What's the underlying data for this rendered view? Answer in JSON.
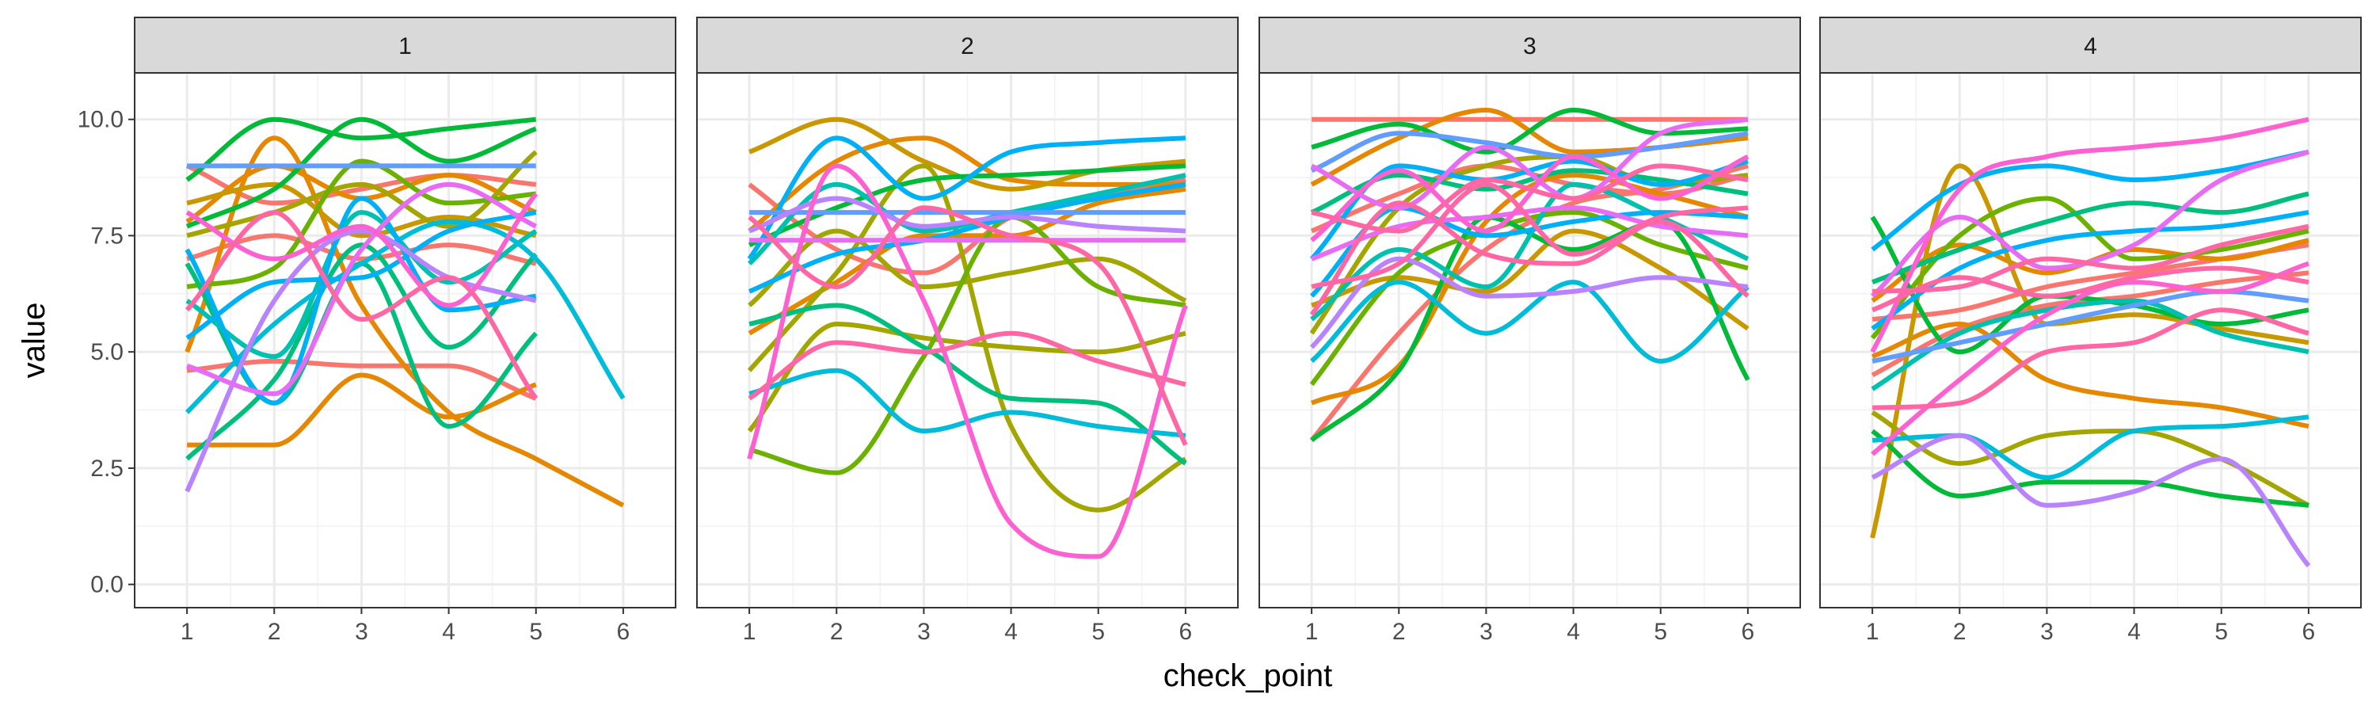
{
  "chart_data": {
    "type": "line",
    "facet_variable_values": [
      "1",
      "2",
      "3",
      "4"
    ],
    "xlabel": "check_point",
    "ylabel": "value",
    "title": "",
    "xlim": [
      0.4,
      6.6
    ],
    "ylim": [
      -0.5,
      11.0
    ],
    "x_ticks": [
      "1",
      "2",
      "3",
      "4",
      "5",
      "6"
    ],
    "y_ticks": [
      "0.0",
      "2.5",
      "5.0",
      "7.5",
      "10.0"
    ],
    "grid": true,
    "theme": "bw",
    "line_style": "smoothed",
    "legend": "none",
    "panels": [
      {
        "facet": "1",
        "x": [
          1,
          2,
          3,
          4,
          5,
          6
        ],
        "series": [
          {
            "color": "#F8766D",
            "values": [
              9.0,
              8.2,
              8.5,
              8.8,
              8.6,
              null
            ]
          },
          {
            "color": "#F8766D",
            "values": [
              4.6,
              4.8,
              4.7,
              4.7,
              4.0,
              null
            ]
          },
          {
            "color": "#F8766D",
            "values": [
              7.0,
              7.5,
              7.0,
              7.3,
              6.9,
              null
            ]
          },
          {
            "color": "#E58700",
            "values": [
              5.0,
              9.6,
              6.0,
              3.7,
              2.7,
              1.7
            ]
          },
          {
            "color": "#E58700",
            "values": [
              3.0,
              3.0,
              4.5,
              3.6,
              4.3,
              null
            ]
          },
          {
            "color": "#E58700",
            "values": [
              7.8,
              9.0,
              8.3,
              8.8,
              8.0,
              null
            ]
          },
          {
            "color": "#C99800",
            "values": [
              8.2,
              8.6,
              7.5,
              7.9,
              7.5,
              null
            ]
          },
          {
            "color": "#A3A500",
            "values": [
              7.5,
              8.0,
              8.6,
              7.7,
              9.3,
              null
            ]
          },
          {
            "color": "#6BB100",
            "values": [
              6.4,
              6.8,
              9.1,
              8.2,
              8.4,
              null
            ]
          },
          {
            "color": "#00BA38",
            "values": [
              8.7,
              10.0,
              9.6,
              9.8,
              10.0,
              null
            ]
          },
          {
            "color": "#00BA38",
            "values": [
              7.7,
              8.5,
              10.0,
              9.1,
              9.8,
              null
            ]
          },
          {
            "color": "#00BF7D",
            "values": [
              6.9,
              3.9,
              6.9,
              3.4,
              5.4,
              null
            ]
          },
          {
            "color": "#00BF7D",
            "values": [
              2.7,
              4.4,
              7.3,
              5.1,
              7.1,
              null
            ]
          },
          {
            "color": "#00C0AF",
            "values": [
              6.1,
              4.9,
              8.0,
              6.5,
              7.6,
              null
            ]
          },
          {
            "color": "#00BCD8",
            "values": [
              3.7,
              5.6,
              6.9,
              7.8,
              7.0,
              4.0
            ]
          },
          {
            "color": "#00B0F6",
            "values": [
              7.2,
              3.9,
              8.3,
              5.9,
              6.2,
              null
            ]
          },
          {
            "color": "#00B0F6",
            "values": [
              5.3,
              6.5,
              6.6,
              7.6,
              8.0,
              null
            ]
          },
          {
            "color": "#619CFF",
            "values": [
              9.0,
              9.0,
              9.0,
              9.0,
              9.0,
              null
            ]
          },
          {
            "color": "#B983FF",
            "values": [
              2.0,
              6.1,
              7.6,
              6.6,
              6.1,
              null
            ]
          },
          {
            "color": "#E76BF3",
            "values": [
              4.7,
              4.1,
              7.2,
              8.6,
              7.7,
              null
            ]
          },
          {
            "color": "#FD61D1",
            "values": [
              8.0,
              7.0,
              7.7,
              6.0,
              8.4,
              null
            ]
          },
          {
            "color": "#FF67A4",
            "values": [
              5.9,
              8.0,
              5.7,
              6.6,
              4.0,
              null
            ]
          }
        ]
      },
      {
        "facet": "2",
        "x": [
          1,
          2,
          3,
          4,
          5,
          6
        ],
        "series": [
          {
            "color": "#F8766D",
            "values": [
              8.6,
              7.2,
              6.7,
              7.9,
              8.3,
              8.7
            ]
          },
          {
            "color": "#E58700",
            "values": [
              7.6,
              9.1,
              9.6,
              8.7,
              8.6,
              8.6
            ]
          },
          {
            "color": "#E58700",
            "values": [
              5.4,
              6.5,
              7.5,
              7.5,
              8.2,
              8.5
            ]
          },
          {
            "color": "#C99800",
            "values": [
              9.3,
              10.0,
              9.1,
              8.5,
              8.9,
              9.1
            ]
          },
          {
            "color": "#A3A500",
            "values": [
              6.0,
              7.6,
              6.4,
              6.7,
              7.0,
              6.1
            ]
          },
          {
            "color": "#A3A500",
            "values": [
              4.6,
              6.7,
              9.0,
              3.4,
              1.6,
              2.7
            ]
          },
          {
            "color": "#A3A500",
            "values": [
              3.3,
              5.6,
              5.3,
              5.1,
              5.0,
              5.4
            ]
          },
          {
            "color": "#6BB100",
            "values": [
              2.9,
              2.4,
              4.9,
              7.9,
              6.4,
              6.0
            ]
          },
          {
            "color": "#00BA38",
            "values": [
              7.3,
              8.1,
              8.7,
              8.8,
              8.9,
              9.0
            ]
          },
          {
            "color": "#00BF7D",
            "values": [
              5.6,
              6.0,
              5.1,
              4.0,
              3.9,
              2.6
            ]
          },
          {
            "color": "#00C0AF",
            "values": [
              6.9,
              8.6,
              7.6,
              8.0,
              8.4,
              8.8
            ]
          },
          {
            "color": "#00BCD8",
            "values": [
              4.1,
              4.6,
              3.3,
              3.7,
              3.4,
              3.2
            ]
          },
          {
            "color": "#00B0F6",
            "values": [
              7.0,
              9.6,
              8.3,
              9.3,
              9.5,
              9.6
            ]
          },
          {
            "color": "#00B0F6",
            "values": [
              6.3,
              7.1,
              7.4,
              7.9,
              8.3,
              8.6
            ]
          },
          {
            "color": "#619CFF",
            "values": [
              8.0,
              8.0,
              8.0,
              8.0,
              8.0,
              8.0
            ]
          },
          {
            "color": "#B983FF",
            "values": [
              7.6,
              8.3,
              7.7,
              7.9,
              7.7,
              7.6
            ]
          },
          {
            "color": "#E76BF3",
            "values": [
              7.4,
              7.4,
              7.4,
              7.4,
              7.4,
              7.4
            ]
          },
          {
            "color": "#FD61D1",
            "values": [
              2.7,
              9.0,
              6.1,
              1.3,
              0.6,
              6.0
            ]
          },
          {
            "color": "#FF67A4",
            "values": [
              4.0,
              5.2,
              5.0,
              5.4,
              4.8,
              4.3
            ]
          },
          {
            "color": "#FF67A4",
            "values": [
              7.9,
              6.4,
              8.1,
              7.5,
              6.9,
              3.0
            ]
          }
        ]
      },
      {
        "facet": "3",
        "x": [
          1,
          2,
          3,
          4,
          5,
          6
        ],
        "series": [
          {
            "color": "#F8766D",
            "values": [
              10.0,
              10.0,
              10.0,
              10.0,
              10.0,
              10.0
            ]
          },
          {
            "color": "#F8766D",
            "values": [
              3.1,
              5.4,
              7.2,
              8.2,
              8.5,
              9.0
            ]
          },
          {
            "color": "#F8766D",
            "values": [
              7.6,
              8.4,
              9.0,
              8.6,
              8.4,
              8.8
            ]
          },
          {
            "color": "#E58700",
            "values": [
              3.9,
              4.7,
              7.8,
              8.8,
              8.4,
              7.9
            ]
          },
          {
            "color": "#E58700",
            "values": [
              8.6,
              9.6,
              10.2,
              9.3,
              9.4,
              9.6
            ]
          },
          {
            "color": "#C99800",
            "values": [
              6.0,
              6.6,
              6.3,
              7.6,
              6.8,
              5.5
            ]
          },
          {
            "color": "#A3A500",
            "values": [
              5.4,
              8.1,
              9.0,
              9.2,
              8.6,
              8.8
            ]
          },
          {
            "color": "#6BB100",
            "values": [
              4.3,
              6.7,
              7.6,
              8.0,
              7.3,
              6.8
            ]
          },
          {
            "color": "#00BA38",
            "values": [
              9.4,
              9.9,
              9.3,
              10.2,
              9.7,
              9.8
            ]
          },
          {
            "color": "#00BA38",
            "values": [
              3.1,
              4.6,
              7.9,
              7.2,
              7.8,
              4.4
            ]
          },
          {
            "color": "#00BF7D",
            "values": [
              8.0,
              8.8,
              8.5,
              8.9,
              8.7,
              8.4
            ]
          },
          {
            "color": "#00C0AF",
            "values": [
              5.7,
              7.2,
              6.4,
              8.6,
              7.9,
              7.0
            ]
          },
          {
            "color": "#00BCD8",
            "values": [
              4.8,
              6.5,
              5.4,
              6.5,
              4.8,
              6.4
            ]
          },
          {
            "color": "#00B0F6",
            "values": [
              7.0,
              9.0,
              8.7,
              9.1,
              8.6,
              9.1
            ]
          },
          {
            "color": "#00B0F6",
            "values": [
              6.2,
              8.1,
              7.5,
              7.8,
              8.0,
              7.9
            ]
          },
          {
            "color": "#619CFF",
            "values": [
              8.9,
              9.7,
              9.5,
              9.2,
              9.4,
              9.7
            ]
          },
          {
            "color": "#B983FF",
            "values": [
              5.1,
              7.0,
              6.2,
              6.3,
              6.6,
              6.4
            ]
          },
          {
            "color": "#E76BF3",
            "values": [
              9.0,
              8.1,
              9.4,
              8.3,
              9.7,
              10.0
            ]
          },
          {
            "color": "#E76BF3",
            "values": [
              7.0,
              7.7,
              7.9,
              8.1,
              7.7,
              7.5
            ]
          },
          {
            "color": "#FD61D1",
            "values": [
              7.4,
              8.9,
              7.6,
              9.2,
              8.3,
              9.2
            ]
          },
          {
            "color": "#FF67A4",
            "values": [
              6.4,
              6.9,
              8.6,
              7.1,
              7.9,
              8.1
            ]
          },
          {
            "color": "#FF67A4",
            "values": [
              8.0,
              7.6,
              8.7,
              8.3,
              9.0,
              8.7
            ]
          },
          {
            "color": "#FF67A4",
            "values": [
              5.8,
              8.2,
              7.1,
              6.9,
              7.8,
              6.2
            ]
          }
        ]
      },
      {
        "facet": "4",
        "x": [
          1,
          2,
          3,
          4,
          5,
          6
        ],
        "series": [
          {
            "color": "#F8766D",
            "values": [
              5.7,
              5.9,
              6.4,
              6.7,
              7.0,
              7.3
            ]
          },
          {
            "color": "#F8766D",
            "values": [
              4.5,
              5.5,
              6.0,
              6.2,
              6.5,
              6.7
            ]
          },
          {
            "color": "#E58700",
            "values": [
              4.9,
              5.6,
              4.4,
              4.0,
              3.8,
              3.4
            ]
          },
          {
            "color": "#E58700",
            "values": [
              6.1,
              7.3,
              6.7,
              7.2,
              7.0,
              7.4
            ]
          },
          {
            "color": "#C99800",
            "values": [
              1.0,
              9.0,
              5.6,
              5.8,
              5.5,
              5.2
            ]
          },
          {
            "color": "#A3A500",
            "values": [
              3.7,
              2.6,
              3.2,
              3.3,
              2.7,
              1.7
            ]
          },
          {
            "color": "#6BB100",
            "values": [
              5.3,
              7.5,
              8.3,
              7.0,
              7.2,
              7.6
            ]
          },
          {
            "color": "#00BA38",
            "values": [
              3.3,
              1.9,
              2.2,
              2.2,
              1.9,
              1.7
            ]
          },
          {
            "color": "#00BA38",
            "values": [
              7.9,
              5.0,
              6.2,
              6.0,
              5.6,
              5.9
            ]
          },
          {
            "color": "#00BF7D",
            "values": [
              6.5,
              7.2,
              7.8,
              8.2,
              8.0,
              8.4
            ]
          },
          {
            "color": "#00C0AF",
            "values": [
              4.2,
              5.4,
              5.9,
              6.1,
              5.4,
              5.0
            ]
          },
          {
            "color": "#00BCD8",
            "values": [
              3.1,
              3.2,
              2.3,
              3.3,
              3.4,
              3.6
            ]
          },
          {
            "color": "#00B0F6",
            "values": [
              7.2,
              8.6,
              9.0,
              8.7,
              8.9,
              9.3
            ]
          },
          {
            "color": "#00B0F6",
            "values": [
              5.5,
              6.8,
              7.4,
              7.6,
              7.7,
              8.0
            ]
          },
          {
            "color": "#619CFF",
            "values": [
              4.8,
              5.2,
              5.6,
              6.0,
              6.3,
              6.1
            ]
          },
          {
            "color": "#B983FF",
            "values": [
              2.3,
              3.2,
              1.7,
              2.0,
              2.7,
              0.4
            ]
          },
          {
            "color": "#E76BF3",
            "values": [
              6.2,
              7.9,
              6.8,
              7.3,
              8.7,
              9.3
            ]
          },
          {
            "color": "#FD61D1",
            "values": [
              5.0,
              8.5,
              9.2,
              9.4,
              9.6,
              10.0
            ]
          },
          {
            "color": "#FD61D1",
            "values": [
              2.8,
              4.4,
              5.8,
              6.5,
              6.3,
              6.9
            ]
          },
          {
            "color": "#FF67A4",
            "values": [
              6.3,
              6.4,
              7.0,
              6.8,
              7.3,
              7.7
            ]
          },
          {
            "color": "#FF67A4",
            "values": [
              3.8,
              3.9,
              5.0,
              5.2,
              5.9,
              5.4
            ]
          },
          {
            "color": "#FF67A4",
            "values": [
              5.9,
              6.6,
              6.2,
              6.6,
              6.8,
              6.5
            ]
          }
        ]
      }
    ]
  }
}
